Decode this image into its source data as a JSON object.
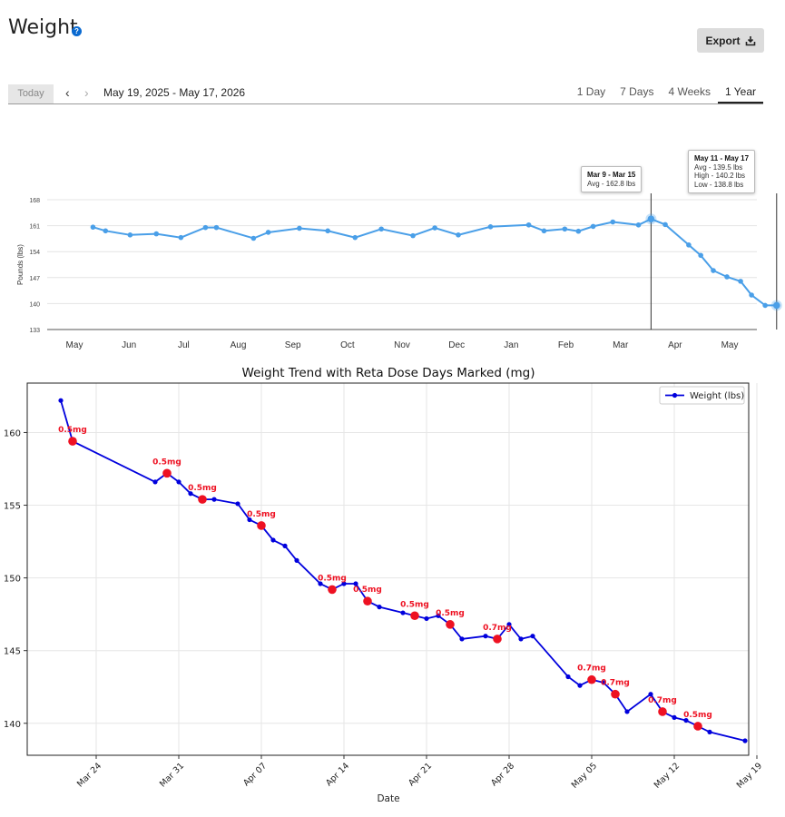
{
  "header": {
    "title": "Weight",
    "help_icon": "question-circle-icon",
    "export_label": "Export",
    "export_icon": "download-icon"
  },
  "toolbar": {
    "today_label": "Today",
    "date_range": "May 19, 2025 - May 17, 2026",
    "ranges": [
      "1 Day",
      "7 Days",
      "4 Weeks",
      "1 Year"
    ],
    "active_range": "1 Year"
  },
  "chart_data": [
    {
      "type": "line",
      "ylabel": "Pounds (lbs)",
      "ylim": [
        133,
        168
      ],
      "yticks": [
        133,
        140,
        147,
        154,
        161,
        168
      ],
      "month_labels": [
        "May",
        "Jun",
        "Jul",
        "Aug",
        "Sep",
        "Oct",
        "Nov",
        "Dec",
        "Jan",
        "Feb",
        "Mar",
        "Apr",
        "May"
      ],
      "grid": true,
      "color": "#4a9fe8",
      "series": [
        {
          "x": [
            0.34,
            0.57,
            1.02,
            1.5,
            1.95,
            2.4,
            2.6,
            3.28,
            3.55,
            4.12,
            4.64,
            5.14,
            5.62,
            6.2,
            6.6,
            7.03,
            7.62,
            8.32,
            8.6,
            8.98,
            9.23,
            9.5,
            9.86,
            10.33,
            10.56,
            10.82,
            11.25,
            11.47,
            11.7,
            11.95,
            12.2,
            12.4,
            12.65,
            12.86
          ],
          "values": [
            160.6,
            159.6,
            158.5,
            158.8,
            157.8,
            160.5,
            160.5,
            157.6,
            159.2,
            160.3,
            159.6,
            157.8,
            160.1,
            158.3,
            160.4,
            158.5,
            160.7,
            161.2,
            159.6,
            160.1,
            159.5,
            160.8,
            162.0,
            161.2,
            162.8,
            161.3,
            155.8,
            153.0,
            148.9,
            147.2,
            146.0,
            142.3,
            139.5,
            139.5
          ]
        }
      ],
      "tooltips": [
        {
          "title": "Mar 9 - Mar 15",
          "lines": [
            "Avg - 162.8 lbs"
          ]
        },
        {
          "title": "May 11 - May 17",
          "lines": [
            "Avg - 139.5 lbs",
            "High - 140.2 lbs",
            "Low - 138.8 lbs"
          ]
        }
      ]
    },
    {
      "type": "line",
      "title": "Weight Trend with Reta Dose Days Marked (mg)",
      "xlabel": "Date",
      "ylim": [
        137.8,
        163.4
      ],
      "yticks": [
        140,
        145,
        150,
        155,
        160
      ],
      "xticks": [
        "Mar 24",
        "Mar 31",
        "Apr 07",
        "Apr 14",
        "Apr 21",
        "Apr 28",
        "May 05",
        "May 12",
        "May 19"
      ],
      "grid": true,
      "legend_position": "top-right",
      "series": [
        {
          "name": "Weight (lbs)",
          "color": "#0000dd",
          "x": [
            "2026-03-21",
            "2026-03-22",
            "2026-03-29",
            "2026-03-30",
            "2026-03-31",
            "2026-04-01",
            "2026-04-02",
            "2026-04-03",
            "2026-04-05",
            "2026-04-06",
            "2026-04-07",
            "2026-04-08",
            "2026-04-09",
            "2026-04-10",
            "2026-04-12",
            "2026-04-13",
            "2026-04-14",
            "2026-04-15",
            "2026-04-16",
            "2026-04-17",
            "2026-04-19",
            "2026-04-20",
            "2026-04-21",
            "2026-04-22",
            "2026-04-23",
            "2026-04-24",
            "2026-04-26",
            "2026-04-27",
            "2026-04-28",
            "2026-04-29",
            "2026-04-30",
            "2026-05-03",
            "2026-05-04",
            "2026-05-05",
            "2026-05-06",
            "2026-05-07",
            "2026-05-08",
            "2026-05-10",
            "2026-05-11",
            "2026-05-12",
            "2026-05-13",
            "2026-05-14",
            "2026-05-15",
            "2026-05-18"
          ],
          "values": [
            162.2,
            159.4,
            156.6,
            157.2,
            156.6,
            155.8,
            155.4,
            155.4,
            155.1,
            154.0,
            153.6,
            152.6,
            152.2,
            151.2,
            149.6,
            149.2,
            149.6,
            149.6,
            148.4,
            148.0,
            147.6,
            147.4,
            147.2,
            147.4,
            146.8,
            145.8,
            146.0,
            145.8,
            146.8,
            145.8,
            146.0,
            143.2,
            142.6,
            143.0,
            142.8,
            142.0,
            140.8,
            142.0,
            140.8,
            140.4,
            140.2,
            139.8,
            139.4,
            138.8
          ]
        }
      ],
      "dose_markers": [
        {
          "x": "2026-03-22",
          "value": 159.4,
          "label": "0.5mg"
        },
        {
          "x": "2026-03-30",
          "value": 157.2,
          "label": "0.5mg"
        },
        {
          "x": "2026-04-02",
          "value": 155.4,
          "label": "0.5mg"
        },
        {
          "x": "2026-04-07",
          "value": 153.6,
          "label": "0.5mg"
        },
        {
          "x": "2026-04-13",
          "value": 149.2,
          "label": "0.5mg"
        },
        {
          "x": "2026-04-16",
          "value": 148.4,
          "label": "0.5mg"
        },
        {
          "x": "2026-04-20",
          "value": 147.4,
          "label": "0.5mg"
        },
        {
          "x": "2026-04-23",
          "value": 146.8,
          "label": "0.5mg"
        },
        {
          "x": "2026-04-27",
          "value": 145.8,
          "label": "0.7mg"
        },
        {
          "x": "2026-05-05",
          "value": 143.0,
          "label": "0.7mg"
        },
        {
          "x": "2026-05-07",
          "value": 142.0,
          "label": "0.7mg"
        },
        {
          "x": "2026-05-11",
          "value": 140.8,
          "label": "0.7mg"
        },
        {
          "x": "2026-05-14",
          "value": 139.8,
          "label": "0.5mg"
        }
      ],
      "marker_color": "#ee1122"
    }
  ]
}
